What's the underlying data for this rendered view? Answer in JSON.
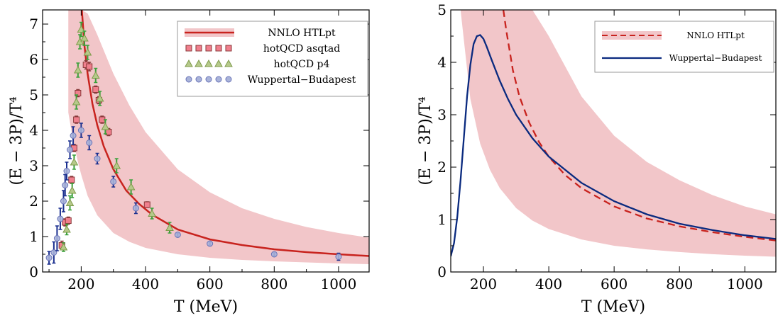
{
  "colors": {
    "band": "#f2c6c9",
    "nnlo": "#c8231e",
    "asqtad_fill": "#f07f8d",
    "asqtad_edge": "#8a3a3a",
    "p4_fill": "#b6c98a",
    "p4_edge": "#7d9a4a",
    "p4_err": "#3aa13a",
    "wb_fill": "#a9b3d9",
    "wb_edge": "#6a74b8",
    "wb_err": "#1a2f8f",
    "wb_line": "#0a2a7f"
  },
  "chart_data": [
    {
      "type": "scatter",
      "xlabel": "T (MeV)",
      "ylabel": "(E − 3P)/T⁴",
      "xlim": [
        80,
        1095
      ],
      "ylim": [
        0,
        7.4
      ],
      "xticks": [
        200,
        400,
        600,
        800,
        1000
      ],
      "yticks": [
        0,
        1,
        2,
        3,
        4,
        5,
        6,
        7
      ],
      "legend_position": "top-right",
      "grid": false,
      "band": {
        "name": "NNLO HTLpt",
        "x": [
          160,
          175,
          190,
          200,
          220,
          250,
          300,
          350,
          400,
          500,
          600,
          700,
          800,
          900,
          1000,
          1095
        ],
        "upper": [
          7.4,
          7.4,
          7.4,
          7.4,
          7.3,
          6.7,
          5.6,
          4.7,
          3.95,
          2.9,
          2.25,
          1.8,
          1.5,
          1.27,
          1.1,
          0.97
        ],
        "lower": [
          4.5,
          3.7,
          3.1,
          2.75,
          2.15,
          1.6,
          1.1,
          0.85,
          0.68,
          0.5,
          0.4,
          0.34,
          0.3,
          0.27,
          0.24,
          0.22
        ]
      },
      "line": {
        "name": "NNLO HTLpt",
        "x": [
          202,
          210,
          220,
          235,
          250,
          270,
          300,
          340,
          380,
          420,
          500,
          600,
          700,
          800,
          900,
          1000,
          1095
        ],
        "y": [
          7.4,
          6.4,
          5.6,
          4.75,
          4.15,
          3.55,
          2.9,
          2.3,
          1.92,
          1.62,
          1.2,
          0.92,
          0.76,
          0.64,
          0.56,
          0.5,
          0.45
        ]
      },
      "series": [
        {
          "name": "hotQCD asqtad",
          "marker": "square",
          "points": [
            {
              "x": 140,
              "y": 0.75,
              "err": 0.12
            },
            {
              "x": 150,
              "y": 1.4,
              "err": 0.1
            },
            {
              "x": 160,
              "y": 1.45,
              "err": 0.1
            },
            {
              "x": 170,
              "y": 2.6,
              "err": 0.1
            },
            {
              "x": 178,
              "y": 3.5,
              "err": 0.1
            },
            {
              "x": 185,
              "y": 4.3,
              "err": 0.1
            },
            {
              "x": 190,
              "y": 5.05,
              "err": 0.1
            },
            {
              "x": 215,
              "y": 5.85,
              "err": 0.12
            },
            {
              "x": 225,
              "y": 5.8,
              "err": 0.12
            },
            {
              "x": 245,
              "y": 5.15,
              "err": 0.1
            },
            {
              "x": 255,
              "y": 4.85,
              "err": 0.1
            },
            {
              "x": 265,
              "y": 4.3,
              "err": 0.1
            },
            {
              "x": 285,
              "y": 3.95,
              "err": 0.1
            },
            {
              "x": 405,
              "y": 1.9,
              "err": 0.08
            }
          ]
        },
        {
          "name": "hotQCD p4",
          "marker": "triangle",
          "points": [
            {
              "x": 145,
              "y": 0.7,
              "err": 0.12
            },
            {
              "x": 155,
              "y": 1.2,
              "err": 0.15
            },
            {
              "x": 165,
              "y": 1.95,
              "err": 0.2
            },
            {
              "x": 172,
              "y": 2.3,
              "err": 0.2
            },
            {
              "x": 178,
              "y": 3.1,
              "err": 0.2
            },
            {
              "x": 185,
              "y": 4.8,
              "err": 0.2
            },
            {
              "x": 190,
              "y": 5.7,
              "err": 0.2
            },
            {
              "x": 196,
              "y": 6.5,
              "err": 0.2
            },
            {
              "x": 200,
              "y": 6.85,
              "err": 0.2
            },
            {
              "x": 210,
              "y": 6.6,
              "err": 0.2
            },
            {
              "x": 220,
              "y": 6.2,
              "err": 0.2
            },
            {
              "x": 245,
              "y": 5.55,
              "err": 0.2
            },
            {
              "x": 258,
              "y": 4.9,
              "err": 0.2
            },
            {
              "x": 275,
              "y": 4.1,
              "err": 0.2
            },
            {
              "x": 310,
              "y": 3.0,
              "err": 0.2
            },
            {
              "x": 355,
              "y": 2.4,
              "err": 0.2
            },
            {
              "x": 420,
              "y": 1.65,
              "err": 0.15
            },
            {
              "x": 475,
              "y": 1.25,
              "err": 0.15
            }
          ]
        },
        {
          "name": "Wuppertal−Budapest",
          "marker": "circle",
          "points": [
            {
              "x": 100,
              "y": 0.4,
              "err": 0.18
            },
            {
              "x": 115,
              "y": 0.55,
              "err": 0.3
            },
            {
              "x": 125,
              "y": 0.95,
              "err": 0.35
            },
            {
              "x": 135,
              "y": 1.5,
              "err": 0.3
            },
            {
              "x": 145,
              "y": 2.0,
              "err": 0.3
            },
            {
              "x": 150,
              "y": 2.45,
              "err": 0.3
            },
            {
              "x": 155,
              "y": 2.85,
              "err": 0.25
            },
            {
              "x": 165,
              "y": 3.45,
              "err": 0.25
            },
            {
              "x": 175,
              "y": 3.85,
              "err": 0.25
            },
            {
              "x": 200,
              "y": 4.0,
              "err": 0.2
            },
            {
              "x": 225,
              "y": 3.65,
              "err": 0.2
            },
            {
              "x": 250,
              "y": 3.2,
              "err": 0.15
            },
            {
              "x": 300,
              "y": 2.55,
              "err": 0.15
            },
            {
              "x": 370,
              "y": 1.8,
              "err": 0.15
            },
            {
              "x": 500,
              "y": 1.05,
              "err": 0.05
            },
            {
              "x": 600,
              "y": 0.8,
              "err": 0.05
            },
            {
              "x": 800,
              "y": 0.5,
              "err": 0.05
            },
            {
              "x": 1000,
              "y": 0.43,
              "err": 0.1
            }
          ]
        }
      ]
    },
    {
      "type": "line",
      "xlabel": "T (MeV)",
      "ylabel": "(E − 3P)/T⁴",
      "xlim": [
        100,
        1095
      ],
      "ylim": [
        0,
        5
      ],
      "xticks": [
        200,
        400,
        600,
        800,
        1000
      ],
      "yticks": [
        0,
        1,
        2,
        3,
        4,
        5
      ],
      "legend_position": "top-right",
      "grid": false,
      "band": {
        "name": "NNLO HTLpt",
        "x": [
          130,
          160,
          190,
          220,
          250,
          300,
          350,
          400,
          500,
          600,
          700,
          800,
          900,
          1000,
          1095
        ],
        "upper": [
          5,
          5,
          5,
          5,
          5,
          5,
          5,
          4.5,
          3.35,
          2.6,
          2.1,
          1.75,
          1.47,
          1.25,
          1.1
        ],
        "lower": [
          5,
          3.3,
          2.45,
          1.95,
          1.6,
          1.22,
          0.98,
          0.82,
          0.62,
          0.5,
          0.43,
          0.38,
          0.34,
          0.31,
          0.29
        ]
      },
      "series": [
        {
          "name": "NNLO HTLpt",
          "style": "dashed",
          "x": [
            261,
            270,
            290,
            310,
            340,
            370,
            400,
            450,
            500,
            600,
            700,
            800,
            900,
            1000,
            1095
          ],
          "y": [
            5.0,
            4.6,
            3.85,
            3.35,
            2.85,
            2.48,
            2.2,
            1.85,
            1.6,
            1.25,
            1.02,
            0.87,
            0.76,
            0.67,
            0.6
          ]
        },
        {
          "name": "Wuppertal−Budapest",
          "style": "solid",
          "x": [
            100,
            110,
            120,
            130,
            140,
            150,
            160,
            170,
            180,
            190,
            200,
            210,
            225,
            250,
            275,
            300,
            350,
            400,
            500,
            600,
            700,
            800,
            900,
            1000,
            1095
          ],
          "y": [
            0.3,
            0.55,
            1.05,
            1.75,
            2.55,
            3.35,
            3.95,
            4.35,
            4.5,
            4.52,
            4.45,
            4.3,
            4.05,
            3.65,
            3.3,
            3.0,
            2.55,
            2.2,
            1.7,
            1.35,
            1.1,
            0.92,
            0.8,
            0.7,
            0.63
          ]
        }
      ]
    }
  ]
}
